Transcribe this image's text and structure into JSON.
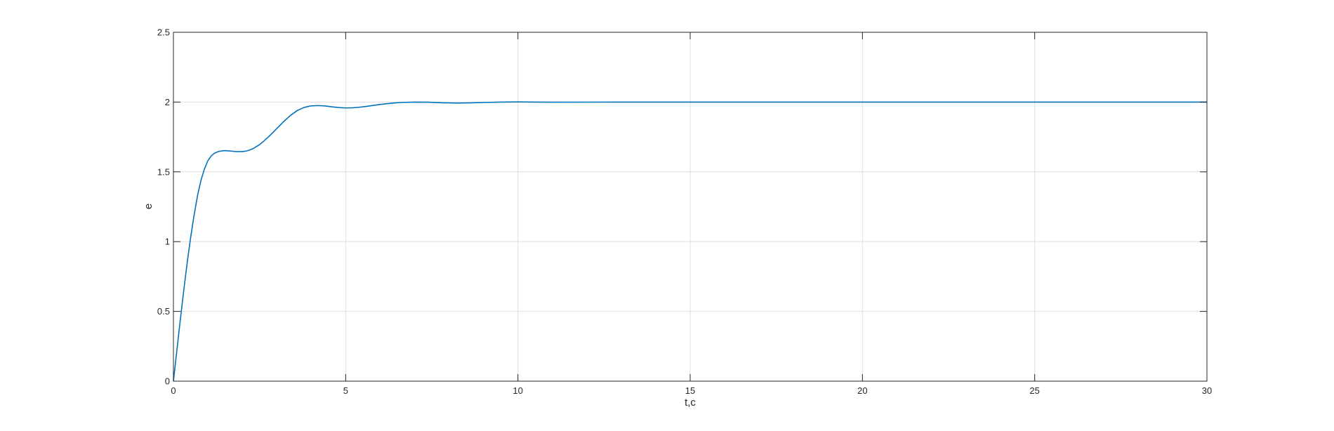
{
  "chart_data": {
    "type": "line",
    "title": "",
    "xlabel": "t,c",
    "ylabel": "e",
    "xlim": [
      0,
      30
    ],
    "ylim": [
      0,
      2.5
    ],
    "grid": true,
    "box": true,
    "xticks": [
      0,
      5,
      10,
      15,
      20,
      25,
      30
    ],
    "yticks": [
      0,
      0.5,
      1,
      1.5,
      2,
      2.5
    ],
    "xtick_labels": [
      "0",
      "5",
      "10",
      "15",
      "20",
      "25",
      "30"
    ],
    "ytick_labels": [
      "0",
      "0.5",
      "1",
      "1.5",
      "2",
      "2.5"
    ],
    "series": [
      {
        "color": "#0072BD",
        "x": [
          0,
          0.1,
          0.2,
          0.3,
          0.4,
          0.5,
          0.6,
          0.7,
          0.8,
          0.9,
          1.0,
          1.1,
          1.2,
          1.3,
          1.4,
          1.5,
          1.6,
          1.7,
          1.8,
          1.9,
          2.0,
          2.1,
          2.2,
          2.3,
          2.4,
          2.5,
          2.6,
          2.8,
          3.0,
          3.2,
          3.4,
          3.6,
          3.8,
          4.0,
          4.2,
          4.4,
          4.6,
          4.8,
          5.0,
          5.2,
          5.4,
          5.6,
          5.8,
          6.0,
          6.3,
          6.6,
          7.0,
          7.4,
          7.8,
          8.2,
          8.6,
          9.0,
          9.5,
          10.0,
          10.5,
          11.0,
          12.0,
          13.0,
          15.0,
          20.0,
          25.0,
          30.0
        ],
        "y": [
          0,
          0.22,
          0.44,
          0.65,
          0.85,
          1.03,
          1.19,
          1.33,
          1.44,
          1.52,
          1.58,
          1.615,
          1.635,
          1.645,
          1.65,
          1.652,
          1.65,
          1.648,
          1.646,
          1.645,
          1.645,
          1.648,
          1.655,
          1.665,
          1.68,
          1.695,
          1.715,
          1.76,
          1.81,
          1.86,
          1.905,
          1.94,
          1.962,
          1.973,
          1.975,
          1.972,
          1.966,
          1.961,
          1.958,
          1.959,
          1.963,
          1.969,
          1.976,
          1.983,
          1.991,
          1.997,
          2.0,
          1.999,
          1.995,
          1.993,
          1.994,
          1.997,
          2.0,
          2.001,
          2.0,
          1.999,
          1.9995,
          2.0,
          2.0,
          2.0,
          2.0,
          2.0
        ]
      }
    ]
  }
}
